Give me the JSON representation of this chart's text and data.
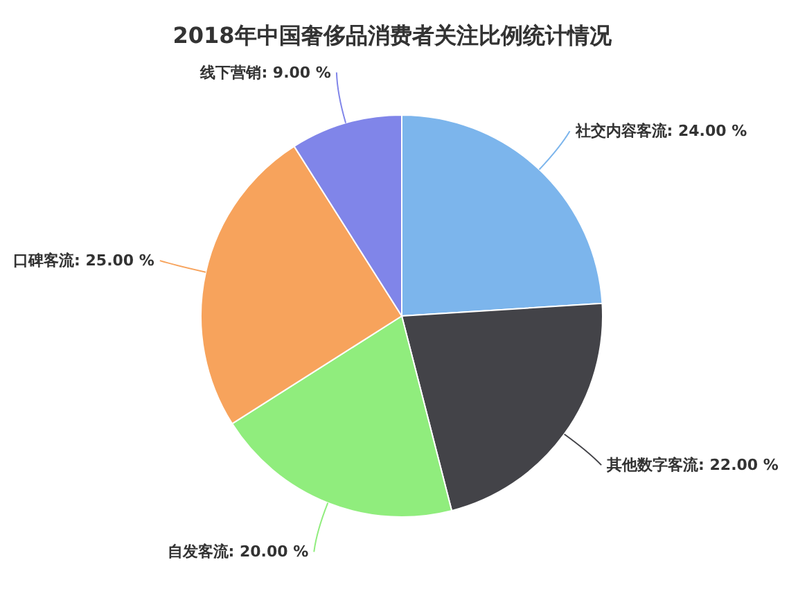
{
  "chart_data": {
    "type": "pie",
    "title": "2018年中国奢侈品消费者关注比例统计情况",
    "categories": [
      "社交内容客流",
      "其他数字客流",
      "自发客流",
      "口碑客流",
      "线下营销"
    ],
    "values": [
      24,
      22,
      20,
      25,
      9
    ],
    "colors": [
      "#7cb5ec",
      "#434348",
      "#90ed7d",
      "#f7a35c",
      "#8085e9"
    ],
    "value_labels": [
      "24.00 %",
      "22.00 %",
      "20.00 %",
      "25.00 %",
      "9.00 %"
    ]
  }
}
